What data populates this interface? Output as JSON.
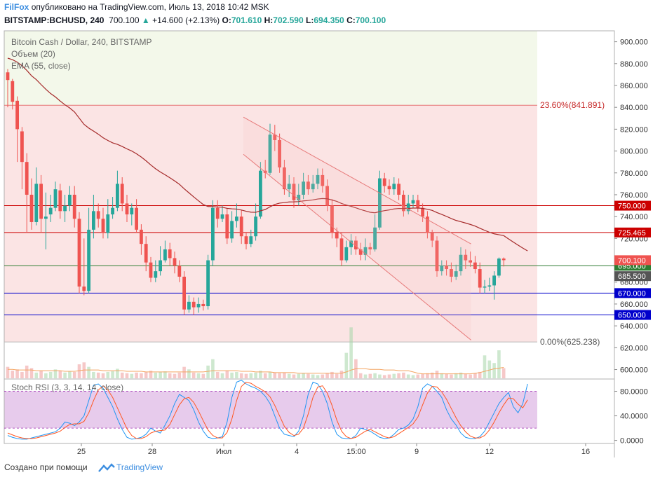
{
  "header": {
    "brand": "FilFox",
    "published": "опубликовано на TradingView.com, Июль 13, 2018 10:42 MSK",
    "symbol": "BITSTAMP:BCHUSD, 240",
    "last": "700.100",
    "change": "+14.600 (+2.13%)",
    "o_label": "O:",
    "o": "701.610",
    "h_label": "H:",
    "h": "702.590",
    "l_label": "L:",
    "l": "694.350",
    "c_label": "C:",
    "c": "700.100"
  },
  "legend": {
    "title": "Bitcoin Cash / Dollar, 240, BITSTAMP",
    "volume": "Объем (20)",
    "ema": "EMA (55, close)",
    "stoch": "Stoch RSI (3, 3, 14, 14, close)"
  },
  "footer": {
    "created": "Создано при помощи",
    "tv": "TradingView"
  },
  "colors": {
    "up": "#26a69a",
    "down": "#ef5350",
    "ema": "#a52a2a",
    "red_line": "#cc0000",
    "green_line": "#2e7d32",
    "blue_line": "#0000cc",
    "stoch_k": "#2196f3",
    "stoch_d": "#ff5722",
    "stoch_band": "#e1bee7"
  },
  "chart_data": {
    "type": "candlestick",
    "price_axis": {
      "ylim": [
        592,
        910
      ],
      "ticks": [
        "600.000",
        "620.000",
        "640.000",
        "660.000",
        "680.000",
        "700.000",
        "720.000",
        "740.000",
        "760.000",
        "780.000",
        "800.000",
        "820.000",
        "840.000",
        "860.000",
        "880.000",
        "900.000"
      ]
    },
    "time_axis": {
      "labels": [
        "25",
        "28",
        "Июл",
        "4",
        "15:00",
        "9",
        "12",
        "16"
      ]
    },
    "fibonacci": [
      {
        "level": "23.60%",
        "price": 841.891,
        "label": "23.60%(841.891)"
      },
      {
        "level": "0.00%",
        "price": 625.238,
        "label": "0.00%(625.238)"
      }
    ],
    "horizontal_levels": [
      {
        "price": 750.0,
        "label": "750.000",
        "color": "red"
      },
      {
        "price": 725.465,
        "label": "725.465",
        "color": "red"
      },
      {
        "price": 695.0,
        "label": "695.000",
        "color": "green"
      },
      {
        "price": 670.0,
        "label": "670.000",
        "color": "blue"
      },
      {
        "price": 650.0,
        "label": "650.000",
        "color": "blue"
      }
    ],
    "price_tags": [
      {
        "price": 700.1,
        "label": "700.100",
        "kind": "last"
      },
      {
        "price": 685.5,
        "label": "685.500",
        "kind": "ema"
      }
    ],
    "channel": {
      "upper": [
        [
          0.392,
          831
        ],
        [
          0.765,
          715
        ]
      ],
      "lower": [
        [
          0.392,
          797
        ],
        [
          0.765,
          627
        ]
      ]
    },
    "candles": [
      [
        872,
        865,
        875,
        840
      ],
      [
        864,
        845,
        866,
        838
      ],
      [
        846,
        820,
        850,
        790
      ],
      [
        818,
        790,
        822,
        765
      ],
      [
        790,
        760,
        798,
        725
      ],
      [
        760,
        735,
        775,
        728
      ],
      [
        735,
        770,
        785,
        732
      ],
      [
        770,
        738,
        778,
        725
      ],
      [
        738,
        740,
        762,
        710
      ],
      [
        742,
        748,
        760,
        735
      ],
      [
        748,
        765,
        772,
        745
      ],
      [
        764,
        745,
        770,
        738
      ],
      [
        745,
        750,
        760,
        735
      ],
      [
        750,
        760,
        768,
        745
      ],
      [
        760,
        738,
        768,
        730
      ],
      [
        738,
        676,
        744,
        670
      ],
      [
        676,
        672,
        720,
        668
      ],
      [
        672,
        728,
        748,
        670
      ],
      [
        728,
        745,
        760,
        720
      ],
      [
        745,
        738,
        752,
        730
      ],
      [
        738,
        725,
        748,
        720
      ],
      [
        725,
        742,
        756,
        720
      ],
      [
        742,
        748,
        758,
        738
      ],
      [
        748,
        770,
        782,
        745
      ],
      [
        770,
        752,
        776,
        745
      ],
      [
        752,
        742,
        760,
        735
      ],
      [
        742,
        748,
        752,
        732
      ],
      [
        748,
        728,
        756,
        725
      ],
      [
        728,
        715,
        733,
        705
      ],
      [
        715,
        698,
        722,
        690
      ],
      [
        698,
        684,
        703,
        680
      ],
      [
        684,
        690,
        700,
        680
      ],
      [
        690,
        700,
        713,
        686
      ],
      [
        700,
        710,
        718,
        698
      ],
      [
        710,
        702,
        716,
        695
      ],
      [
        702,
        695,
        708,
        688
      ],
      [
        695,
        685,
        700,
        680
      ],
      [
        685,
        655,
        690,
        650
      ],
      [
        655,
        662,
        668,
        652
      ],
      [
        662,
        657,
        666,
        650
      ],
      [
        657,
        660,
        666,
        652
      ],
      [
        660,
        658,
        664,
        654
      ],
      [
        658,
        700,
        705,
        655
      ],
      [
        700,
        748,
        755,
        695
      ],
      [
        748,
        738,
        755,
        730
      ],
      [
        738,
        742,
        750,
        735
      ],
      [
        742,
        720,
        748,
        715
      ],
      [
        720,
        736,
        745,
        716
      ],
      [
        736,
        740,
        752,
        730
      ],
      [
        740,
        722,
        746,
        715
      ],
      [
        722,
        715,
        726,
        710
      ],
      [
        715,
        722,
        728,
        712
      ],
      [
        722,
        740,
        752,
        718
      ],
      [
        740,
        782,
        790,
        738
      ],
      [
        782,
        780,
        792,
        775
      ],
      [
        780,
        815,
        825,
        778
      ],
      [
        815,
        810,
        824,
        800
      ],
      [
        810,
        785,
        816,
        780
      ],
      [
        785,
        765,
        792,
        760
      ],
      [
        765,
        770,
        778,
        758
      ],
      [
        770,
        755,
        776,
        748
      ],
      [
        755,
        760,
        770,
        750
      ],
      [
        760,
        772,
        780,
        756
      ],
      [
        772,
        765,
        778,
        760
      ],
      [
        765,
        770,
        778,
        762
      ],
      [
        770,
        778,
        784,
        765
      ],
      [
        778,
        768,
        784,
        762
      ],
      [
        768,
        750,
        774,
        745
      ],
      [
        750,
        725,
        756,
        720
      ],
      [
        725,
        720,
        730,
        712
      ],
      [
        720,
        700,
        725,
        695
      ],
      [
        700,
        712,
        718,
        698
      ],
      [
        712,
        718,
        724,
        705
      ],
      [
        718,
        710,
        722,
        705
      ],
      [
        710,
        705,
        716,
        700
      ],
      [
        705,
        712,
        720,
        700
      ],
      [
        712,
        710,
        716,
        705
      ],
      [
        710,
        730,
        742,
        708
      ],
      [
        730,
        775,
        782,
        728
      ],
      [
        775,
        768,
        780,
        762
      ],
      [
        768,
        765,
        774,
        760
      ],
      [
        765,
        770,
        776,
        760
      ],
      [
        770,
        760,
        775,
        755
      ],
      [
        760,
        745,
        764,
        740
      ],
      [
        745,
        752,
        760,
        742
      ],
      [
        752,
        755,
        760,
        748
      ],
      [
        755,
        748,
        760,
        744
      ],
      [
        748,
        740,
        752,
        735
      ],
      [
        740,
        725,
        745,
        720
      ],
      [
        725,
        718,
        728,
        712
      ],
      [
        718,
        690,
        722,
        685
      ],
      [
        690,
        695,
        700,
        686
      ],
      [
        695,
        692,
        700,
        686
      ],
      [
        692,
        685,
        698,
        680
      ],
      [
        685,
        690,
        696,
        682
      ],
      [
        690,
        705,
        712,
        686
      ],
      [
        705,
        700,
        710,
        692
      ],
      [
        700,
        698,
        708,
        694
      ],
      [
        698,
        692,
        704,
        688
      ],
      [
        692,
        675,
        698,
        670
      ],
      [
        675,
        676,
        682,
        670
      ],
      [
        676,
        677,
        684,
        672
      ],
      [
        677,
        686,
        690,
        664
      ],
      [
        686,
        701.6,
        702.6,
        684
      ],
      [
        701.6,
        700.1,
        702.6,
        694.35
      ]
    ],
    "volume": {
      "ylim": [
        0,
        110
      ],
      "values": [
        18,
        12,
        14,
        10,
        20,
        16,
        9,
        12,
        8,
        10,
        14,
        12,
        9,
        11,
        10,
        22,
        25,
        18,
        10,
        9,
        8,
        10,
        11,
        15,
        9,
        8,
        7,
        9,
        8,
        10,
        12,
        9,
        10,
        11,
        8,
        7,
        9,
        18,
        14,
        9,
        8,
        7,
        20,
        30,
        10,
        8,
        12,
        9,
        10,
        8,
        7,
        8,
        9,
        12,
        8,
        10,
        9,
        8,
        9,
        7,
        6,
        7,
        8,
        7,
        6,
        5,
        6,
        8,
        10,
        7,
        12,
        40,
        80,
        30,
        8,
        6,
        7,
        8,
        6,
        5,
        6,
        7,
        8,
        9,
        6,
        5,
        6,
        7,
        8,
        9,
        12,
        8,
        7,
        6,
        8,
        9,
        7,
        6,
        8,
        10,
        36,
        28,
        24,
        44,
        16
      ],
      "ma": [
        14,
        14,
        13,
        13,
        13,
        13,
        12,
        12,
        12,
        12,
        12,
        12,
        11,
        11,
        11,
        12,
        13,
        13,
        13,
        13,
        12,
        12,
        12,
        12,
        12,
        11,
        11,
        11,
        11,
        10,
        10,
        10,
        10,
        10,
        10,
        10,
        10,
        10,
        10,
        10,
        10,
        10,
        11,
        12,
        12,
        12,
        12,
        12,
        12,
        11,
        11,
        11,
        10,
        10,
        10,
        10,
        9,
        9,
        9,
        9,
        9,
        8,
        8,
        8,
        8,
        8,
        8,
        8,
        8,
        8,
        8,
        10,
        13,
        15,
        15,
        15,
        14,
        14,
        14,
        13,
        13,
        13,
        12,
        12,
        12,
        10,
        8,
        7,
        7,
        7,
        7,
        7,
        7,
        7,
        7,
        7,
        7,
        7,
        8,
        9,
        11,
        13,
        15,
        16,
        17
      ]
    },
    "stoch_rsi": {
      "ylim": [
        -5,
        100
      ],
      "ticks": [
        "0.0000",
        "40.0000",
        "80.0000"
      ],
      "k": [
        8,
        5,
        3,
        2,
        2,
        4,
        6,
        8,
        10,
        12,
        14,
        20,
        30,
        28,
        24,
        30,
        40,
        65,
        90,
        92,
        85,
        70,
        55,
        35,
        18,
        5,
        2,
        3,
        5,
        10,
        20,
        15,
        12,
        25,
        40,
        60,
        75,
        70,
        65,
        50,
        30,
        15,
        5,
        3,
        4,
        6,
        30,
        70,
        95,
        98,
        92,
        88,
        85,
        80,
        72,
        60,
        40,
        20,
        10,
        8,
        6,
        15,
        40,
        75,
        95,
        92,
        80,
        60,
        30,
        10,
        4,
        3,
        3,
        8,
        20,
        18,
        15,
        10,
        5,
        3,
        4,
        10,
        18,
        20,
        25,
        35,
        55,
        85,
        92,
        88,
        80,
        70,
        50,
        35,
        25,
        12,
        5,
        3,
        3,
        6,
        15,
        30,
        45,
        60,
        70,
        78,
        55,
        45,
        60,
        92
      ],
      "d": [
        12,
        9,
        6,
        4,
        3,
        3,
        4,
        6,
        8,
        10,
        12,
        15,
        21,
        26,
        27,
        27,
        31,
        45,
        65,
        82,
        89,
        82,
        70,
        53,
        36,
        19,
        8,
        3,
        3,
        6,
        12,
        15,
        16,
        17,
        26,
        42,
        58,
        68,
        70,
        62,
        48,
        32,
        17,
        8,
        4,
        4,
        13,
        35,
        65,
        88,
        95,
        93,
        88,
        84,
        79,
        71,
        57,
        40,
        23,
        13,
        8,
        10,
        20,
        43,
        70,
        87,
        89,
        77,
        57,
        33,
        15,
        6,
        3,
        5,
        10,
        15,
        18,
        14,
        10,
        6,
        4,
        6,
        11,
        16,
        21,
        27,
        38,
        58,
        77,
        88,
        87,
        79,
        67,
        52,
        37,
        24,
        14,
        7,
        4,
        4,
        8,
        17,
        30,
        45,
        58,
        69,
        68,
        59,
        53,
        66
      ]
    }
  }
}
